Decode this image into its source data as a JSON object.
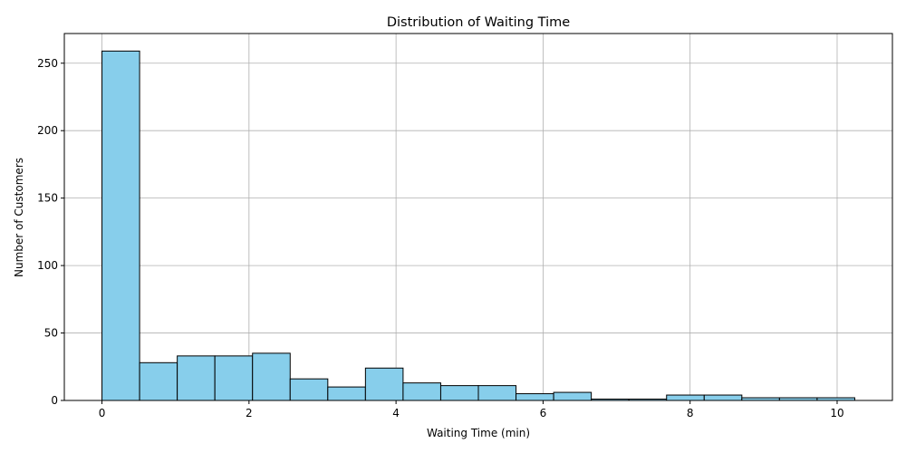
{
  "chart_data": {
    "type": "bar",
    "subtype": "histogram",
    "title": "Distribution of Waiting Time",
    "xlabel": "Waiting Time (min)",
    "ylabel": "Number of Customers",
    "bin_edges": [
      0,
      0.512,
      1.024,
      1.536,
      2.048,
      2.56,
      3.072,
      3.584,
      4.096,
      4.608,
      5.12,
      5.632,
      6.144,
      6.656,
      7.168,
      7.68,
      8.192,
      8.704,
      9.216,
      9.728,
      10.24
    ],
    "values": [
      259,
      28,
      33,
      33,
      35,
      16,
      10,
      24,
      13,
      11,
      11,
      5,
      6,
      1,
      1,
      4,
      4,
      2,
      2,
      2
    ],
    "xlim": [
      -0.512,
      10.752
    ],
    "ylim": [
      0,
      272
    ],
    "x_ticks": [
      0,
      2,
      4,
      6,
      8,
      10
    ],
    "y_ticks": [
      0,
      50,
      100,
      150,
      200,
      250
    ],
    "x_tick_labels": [
      "0",
      "2",
      "4",
      "6",
      "8",
      "10"
    ],
    "y_tick_labels": [
      "0",
      "50",
      "100",
      "150",
      "200",
      "250"
    ],
    "grid": true,
    "colors": {
      "bar_fill": "#87ceeb",
      "bar_edge": "#000000",
      "grid": "#b0b0b0",
      "axes": "#000000"
    }
  }
}
